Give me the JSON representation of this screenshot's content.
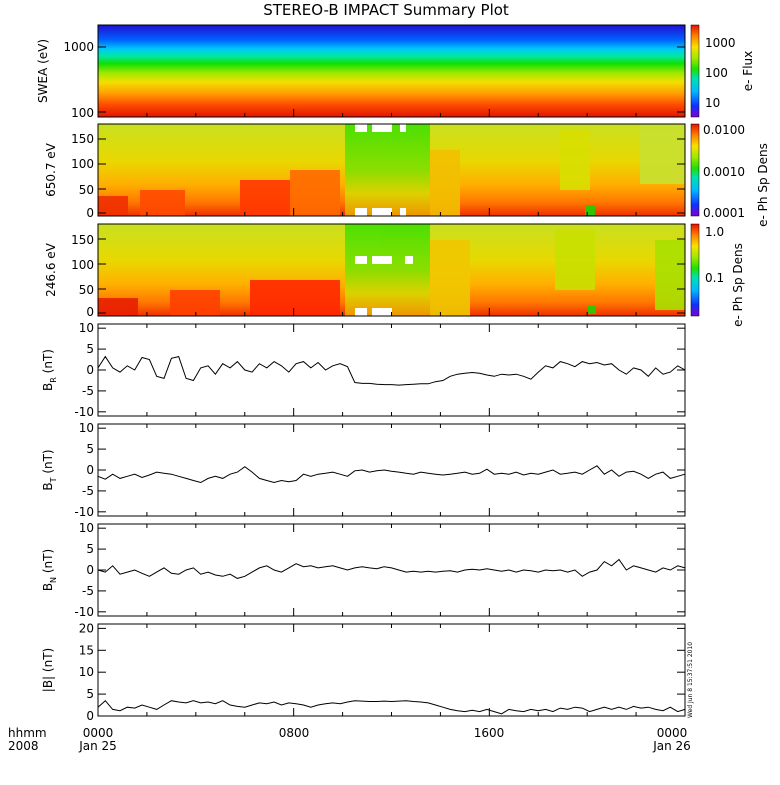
{
  "title": "STEREO-B IMPACT Summary Plot",
  "time_axis": {
    "row1_labels": [
      "hhmm",
      "0000",
      "0800",
      "1600",
      "0000"
    ],
    "row2_labels": [
      "2008",
      "Jan 25",
      "",
      "",
      "Jan 26"
    ]
  },
  "timestamp": "Wed Jun 8 15:37:51 2010",
  "colors": {
    "line": "#000000",
    "frame": "#000000",
    "gap": "#ffffff"
  },
  "chart_data": [
    {
      "type": "heatmap",
      "name": "swea",
      "ylabel": "SWEA (eV)",
      "yscale": "log",
      "y_ticks": [
        "1000",
        "100"
      ],
      "colorbar": {
        "title": "e- Flux",
        "scale": "log",
        "ticks": [
          "1000",
          "100",
          "10"
        ],
        "range": [
          3,
          3000
        ]
      },
      "description_values": {
        "high_energy_flux": 5,
        "low_energy_flux": 1500
      }
    },
    {
      "type": "heatmap",
      "name": "pad-650",
      "ylabel": "650.7 eV",
      "y_ticks": [
        "0",
        "50",
        "100",
        "150"
      ],
      "ylim": [
        0,
        180
      ],
      "colorbar": {
        "title": "e- Ph Sp Dens",
        "scale": "log",
        "ticks": [
          "0.0100",
          "0.0010",
          "0.0001"
        ],
        "range": [
          0.0001,
          0.02
        ]
      }
    },
    {
      "type": "heatmap",
      "name": "pad-246",
      "ylabel": "246.6 eV",
      "y_ticks": [
        "0",
        "50",
        "100",
        "150"
      ],
      "ylim": [
        0,
        180
      ],
      "colorbar": {
        "title": "e- Ph Sp Dens",
        "scale": "log",
        "ticks": [
          "1.0",
          "0.1"
        ],
        "range": [
          0.01,
          1.2
        ]
      }
    },
    {
      "type": "line",
      "name": "br",
      "ylabel_main": "B",
      "ylabel_sub": "R",
      "ylabel_unit": "(nT)",
      "y_ticks": [
        "10",
        "5",
        "0",
        "-5",
        "-10"
      ],
      "ylim": [
        -11,
        11
      ],
      "xlim": [
        0,
        24
      ],
      "x": [
        0,
        0.3,
        0.6,
        0.9,
        1.2,
        1.5,
        1.8,
        2.1,
        2.4,
        2.7,
        3.0,
        3.3,
        3.6,
        3.9,
        4.2,
        4.5,
        4.8,
        5.1,
        5.4,
        5.7,
        6.0,
        6.3,
        6.6,
        6.9,
        7.2,
        7.5,
        7.8,
        8.1,
        8.4,
        8.7,
        9.0,
        9.3,
        9.6,
        9.9,
        10.2,
        10.5,
        10.8,
        11.1,
        11.4,
        11.7,
        12.0,
        12.3,
        12.6,
        12.9,
        13.2,
        13.5,
        13.8,
        14.1,
        14.4,
        14.7,
        15.0,
        15.3,
        15.6,
        15.9,
        16.2,
        16.5,
        16.8,
        17.1,
        17.4,
        17.7,
        18.0,
        18.3,
        18.6,
        18.9,
        19.2,
        19.5,
        19.8,
        20.1,
        20.4,
        20.7,
        21.0,
        21.3,
        21.6,
        21.9,
        22.2,
        22.5,
        22.8,
        23.1,
        23.4,
        23.7,
        24.0
      ],
      "y": [
        0.5,
        3.2,
        0.5,
        -0.5,
        1.0,
        0.0,
        3.0,
        2.5,
        -1.5,
        -2.0,
        2.8,
        3.2,
        -2.0,
        -2.5,
        0.5,
        1.0,
        -1.0,
        1.5,
        0.5,
        2.0,
        0.0,
        -0.5,
        1.5,
        0.5,
        2.0,
        1.0,
        -0.5,
        1.5,
        2.0,
        0.5,
        1.8,
        0.0,
        1.0,
        1.5,
        0.8,
        -3.0,
        -3.2,
        -3.2,
        -3.4,
        -3.5,
        -3.5,
        -3.6,
        -3.5,
        -3.4,
        -3.3,
        -3.3,
        -2.8,
        -2.5,
        -1.5,
        -1.0,
        -0.8,
        -0.6,
        -0.8,
        -1.2,
        -1.5,
        -1.0,
        -1.2,
        -1.0,
        -1.5,
        -2.2,
        -0.5,
        1.0,
        0.5,
        2.0,
        1.5,
        0.8,
        2.0,
        1.5,
        1.8,
        1.2,
        1.5,
        0.0,
        -1.0,
        0.5,
        0.0,
        -1.5,
        0.5,
        -1.0,
        -0.5,
        1.0,
        0.0
      ]
    },
    {
      "type": "line",
      "name": "bt",
      "ylabel_main": "B",
      "ylabel_sub": "T",
      "ylabel_unit": "(nT)",
      "y_ticks": [
        "10",
        "5",
        "0",
        "-5",
        "-10"
      ],
      "ylim": [
        -11,
        11
      ],
      "xlim": [
        0,
        24
      ],
      "x": [
        0,
        0.3,
        0.6,
        0.9,
        1.2,
        1.5,
        1.8,
        2.1,
        2.4,
        2.7,
        3.0,
        3.3,
        3.6,
        3.9,
        4.2,
        4.5,
        4.8,
        5.1,
        5.4,
        5.7,
        6.0,
        6.3,
        6.6,
        6.9,
        7.2,
        7.5,
        7.8,
        8.1,
        8.4,
        8.7,
        9.0,
        9.3,
        9.6,
        9.9,
        10.2,
        10.5,
        10.8,
        11.1,
        11.4,
        11.7,
        12.0,
        12.3,
        12.6,
        12.9,
        13.2,
        13.5,
        13.8,
        14.1,
        14.4,
        14.7,
        15.0,
        15.3,
        15.6,
        15.9,
        16.2,
        16.5,
        16.8,
        17.1,
        17.4,
        17.7,
        18.0,
        18.3,
        18.6,
        18.9,
        19.2,
        19.5,
        19.8,
        20.1,
        20.4,
        20.7,
        21.0,
        21.3,
        21.6,
        21.9,
        22.2,
        22.5,
        22.8,
        23.1,
        23.4,
        23.7,
        24.0
      ],
      "y": [
        -1.5,
        -2.2,
        -1.0,
        -2.0,
        -1.5,
        -1.0,
        -1.8,
        -1.2,
        -0.5,
        -0.8,
        -1.0,
        -1.5,
        -2.0,
        -2.5,
        -3.0,
        -2.0,
        -1.5,
        -2.0,
        -1.0,
        -0.5,
        0.8,
        -0.5,
        -2.0,
        -2.5,
        -3.0,
        -2.5,
        -2.8,
        -2.5,
        -1.0,
        -1.5,
        -1.0,
        -0.8,
        -0.5,
        -1.0,
        -1.5,
        -0.2,
        0.0,
        -0.5,
        -0.2,
        0.0,
        -0.3,
        -0.5,
        -0.8,
        -1.0,
        -0.5,
        -0.8,
        -1.0,
        -1.2,
        -1.0,
        -0.8,
        -0.5,
        -1.0,
        -0.8,
        0.2,
        -1.0,
        -0.8,
        -1.0,
        -0.5,
        -1.2,
        -0.8,
        -1.0,
        -0.5,
        0.0,
        -1.0,
        -0.8,
        -0.5,
        -1.0,
        0.0,
        1.0,
        -1.0,
        0.0,
        -1.5,
        -0.5,
        -0.3,
        -1.0,
        -2.0,
        -1.0,
        -0.5,
        -2.0,
        -1.5,
        -1.0
      ]
    },
    {
      "type": "line",
      "name": "bn",
      "ylabel_main": "B",
      "ylabel_sub": "N",
      "ylabel_unit": "(nT)",
      "y_ticks": [
        "10",
        "5",
        "0",
        "-5",
        "-10"
      ],
      "ylim": [
        -11,
        11
      ],
      "xlim": [
        0,
        24
      ],
      "x": [
        0,
        0.3,
        0.6,
        0.9,
        1.2,
        1.5,
        1.8,
        2.1,
        2.4,
        2.7,
        3.0,
        3.3,
        3.6,
        3.9,
        4.2,
        4.5,
        4.8,
        5.1,
        5.4,
        5.7,
        6.0,
        6.3,
        6.6,
        6.9,
        7.2,
        7.5,
        7.8,
        8.1,
        8.4,
        8.7,
        9.0,
        9.3,
        9.6,
        9.9,
        10.2,
        10.5,
        10.8,
        11.1,
        11.4,
        11.7,
        12.0,
        12.3,
        12.6,
        12.9,
        13.2,
        13.5,
        13.8,
        14.1,
        14.4,
        14.7,
        15.0,
        15.3,
        15.6,
        15.9,
        16.2,
        16.5,
        16.8,
        17.1,
        17.4,
        17.7,
        18.0,
        18.3,
        18.6,
        18.9,
        19.2,
        19.5,
        19.8,
        20.1,
        20.4,
        20.7,
        21.0,
        21.3,
        21.6,
        21.9,
        22.2,
        22.5,
        22.8,
        23.1,
        23.4,
        23.7,
        24.0
      ],
      "y": [
        0.0,
        -0.5,
        1.0,
        -1.0,
        -0.5,
        0.0,
        -0.8,
        -1.5,
        -0.5,
        0.5,
        -0.8,
        -1.0,
        0.0,
        0.5,
        -1.0,
        -0.5,
        -1.2,
        -1.5,
        -1.0,
        -2.0,
        -1.5,
        -0.5,
        0.5,
        1.0,
        0.0,
        -0.5,
        0.5,
        1.5,
        0.8,
        1.0,
        0.5,
        0.8,
        1.0,
        0.5,
        0.0,
        0.5,
        0.8,
        0.5,
        0.3,
        0.8,
        0.5,
        0.0,
        -0.5,
        -0.3,
        -0.5,
        -0.3,
        -0.5,
        -0.3,
        -0.2,
        -0.5,
        0.0,
        0.2,
        0.0,
        0.3,
        0.0,
        -0.3,
        0.0,
        -0.5,
        0.0,
        -0.2,
        -0.5,
        0.0,
        -0.2,
        0.0,
        -0.5,
        0.0,
        -1.5,
        -0.5,
        0.0,
        2.0,
        1.0,
        2.5,
        0.0,
        1.0,
        0.5,
        0.0,
        -0.5,
        0.5,
        0.0,
        1.0,
        0.5
      ]
    },
    {
      "type": "line",
      "name": "bmag",
      "ylabel_main": "|B|",
      "ylabel_sub": "",
      "ylabel_unit": "(nT)",
      "y_ticks": [
        "20",
        "15",
        "10",
        "5",
        "0"
      ],
      "ylim": [
        0,
        21
      ],
      "xlim": [
        0,
        24
      ],
      "x": [
        0,
        0.3,
        0.6,
        0.9,
        1.2,
        1.5,
        1.8,
        2.1,
        2.4,
        2.7,
        3.0,
        3.3,
        3.6,
        3.9,
        4.2,
        4.5,
        4.8,
        5.1,
        5.4,
        5.7,
        6.0,
        6.3,
        6.6,
        6.9,
        7.2,
        7.5,
        7.8,
        8.1,
        8.4,
        8.7,
        9.0,
        9.3,
        9.6,
        9.9,
        10.2,
        10.5,
        10.8,
        11.1,
        11.4,
        11.7,
        12.0,
        12.3,
        12.6,
        12.9,
        13.2,
        13.5,
        13.8,
        14.1,
        14.4,
        14.7,
        15.0,
        15.3,
        15.6,
        15.9,
        16.2,
        16.5,
        16.8,
        17.1,
        17.4,
        17.7,
        18.0,
        18.3,
        18.6,
        18.9,
        19.2,
        19.5,
        19.8,
        20.1,
        20.4,
        20.7,
        21.0,
        21.3,
        21.6,
        21.9,
        22.2,
        22.5,
        22.8,
        23.1,
        23.4,
        23.7,
        24.0
      ],
      "y": [
        2.0,
        3.5,
        1.5,
        1.2,
        2.0,
        1.8,
        2.5,
        2.0,
        1.5,
        2.5,
        3.5,
        3.2,
        3.0,
        3.5,
        3.0,
        3.2,
        2.8,
        3.5,
        2.5,
        2.2,
        2.0,
        2.5,
        3.0,
        2.8,
        3.2,
        2.5,
        3.0,
        2.8,
        2.5,
        2.0,
        2.5,
        2.8,
        3.0,
        2.8,
        3.2,
        3.5,
        3.4,
        3.3,
        3.3,
        3.4,
        3.3,
        3.4,
        3.5,
        3.3,
        3.2,
        3.0,
        2.5,
        2.0,
        1.5,
        1.2,
        1.0,
        1.3,
        1.0,
        1.5,
        1.0,
        0.5,
        1.5,
        1.2,
        1.0,
        1.5,
        1.2,
        1.5,
        1.0,
        1.8,
        1.5,
        2.0,
        1.8,
        1.0,
        1.5,
        2.0,
        1.5,
        2.0,
        1.5,
        2.2,
        1.8,
        2.0,
        1.5,
        1.2,
        2.0,
        1.0,
        1.5
      ]
    }
  ]
}
